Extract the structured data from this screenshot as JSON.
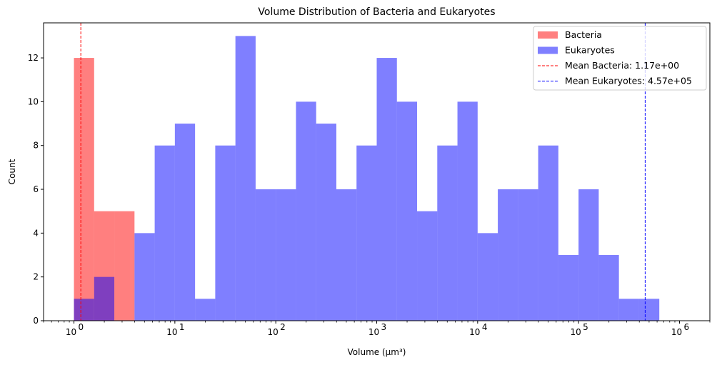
{
  "chart_data": {
    "type": "histogram",
    "title": "Volume Distribution of Bacteria and Eukaryotes",
    "xlabel": "Volume (μm³)",
    "ylabel": "Count",
    "xscale": "log",
    "xlim": [
      0.5,
      2000000
    ],
    "ylim": [
      0,
      13.6
    ],
    "grid": false,
    "legend_position": "top-right",
    "y_ticks": [
      0,
      2,
      4,
      6,
      8,
      10,
      12
    ],
    "x_ticks": [
      {
        "value": 1,
        "base": "10",
        "exp": "0"
      },
      {
        "value": 10,
        "base": "10",
        "exp": "1"
      },
      {
        "value": 100,
        "base": "10",
        "exp": "2"
      },
      {
        "value": 1000,
        "base": "10",
        "exp": "3"
      },
      {
        "value": 10000,
        "base": "10",
        "exp": "4"
      },
      {
        "value": 100000,
        "base": "10",
        "exp": "5"
      },
      {
        "value": 1000000,
        "base": "10",
        "exp": "6"
      }
    ],
    "bin_edges_log10_range": [
      0,
      5.8
    ],
    "bin_count": 29,
    "series": [
      {
        "name": "Bacteria",
        "color": "#ff0000",
        "alpha": 0.5,
        "bin_edges": [
          1.0,
          1.585,
          2.512,
          3.981
        ],
        "counts": [
          12,
          5,
          5
        ]
      },
      {
        "name": "Eukaryotes",
        "color": "#0000ff",
        "alpha": 0.5,
        "bin_edges": [
          1.0,
          1.585,
          2.512,
          3.981,
          6.31,
          10.0,
          15.85,
          25.12,
          39.81,
          63.1,
          100.0,
          158.5,
          251.2,
          398.1,
          631.0,
          1000.0,
          1585.0,
          2512.0,
          3981.0,
          6310.0,
          10000.0,
          15850.0,
          25120.0,
          39810.0,
          63100.0,
          100000.0,
          158500.0,
          251200.0,
          398100.0,
          631000.0
        ],
        "counts": [
          1,
          2,
          0,
          4,
          8,
          9,
          1,
          8,
          13,
          6,
          6,
          10,
          9,
          6,
          8,
          12,
          10,
          5,
          8,
          10,
          4,
          6,
          6,
          8,
          3,
          6,
          3,
          1,
          1
        ]
      }
    ],
    "mean_lines": [
      {
        "label": "Mean Bacteria: 1.17e+00",
        "value": 1.17,
        "color": "#ff0000",
        "style": "dashed"
      },
      {
        "label": "Mean Eukaryotes: 4.57e+05",
        "value": 457000,
        "color": "#0000ff",
        "style": "dashed"
      }
    ]
  }
}
